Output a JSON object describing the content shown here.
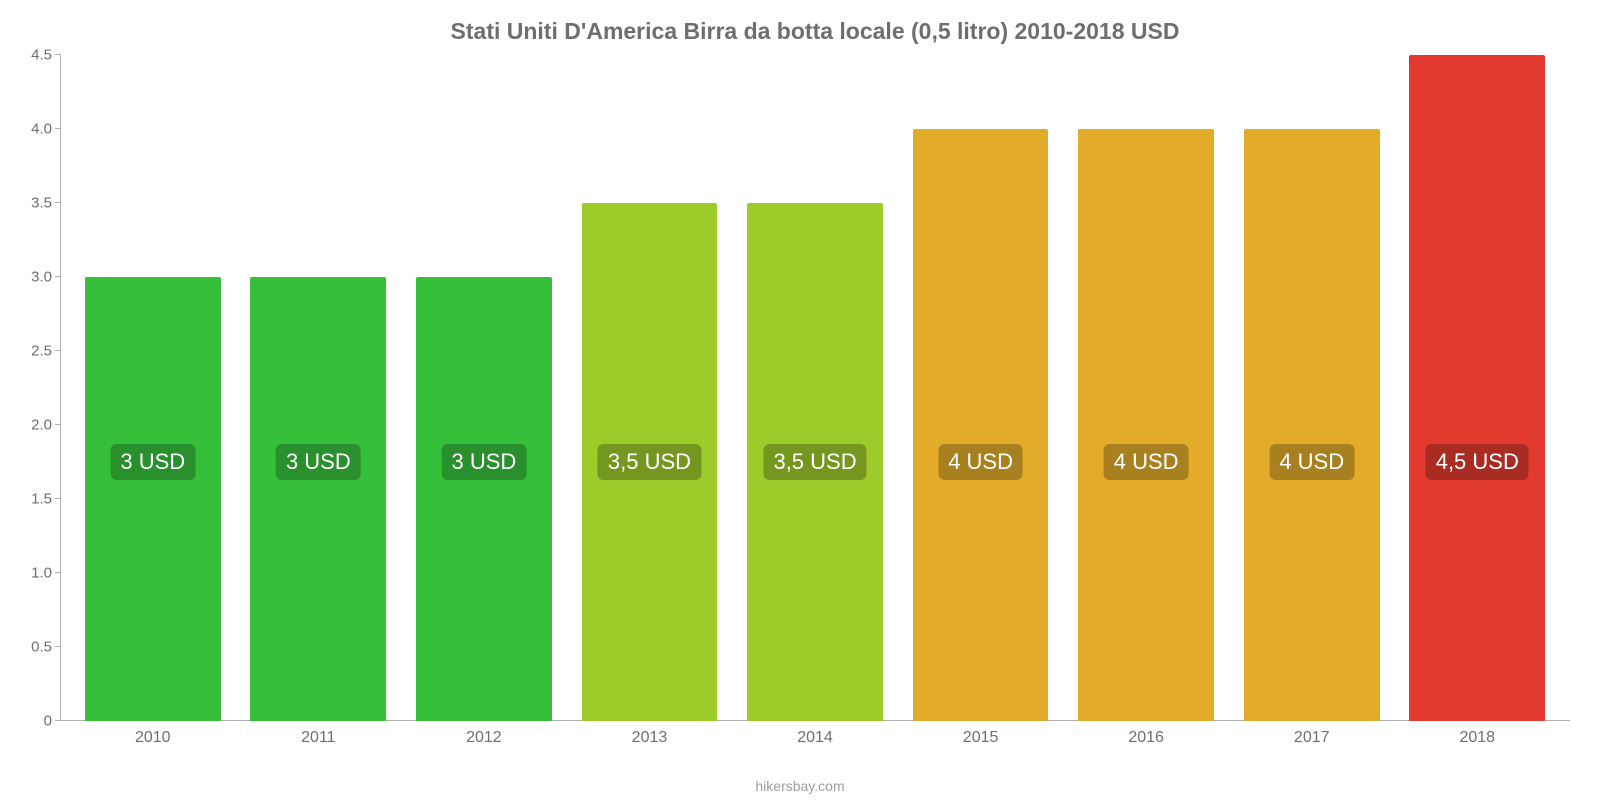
{
  "chart": {
    "type": "bar",
    "title": "Stati Uniti D'America Birra da botta locale (0,5 litro) 2010-2018 USD",
    "title_color": "#6e6e6e",
    "title_fontsize": 23,
    "background_color": "#ffffff",
    "axis_color": "#b0b0b0",
    "tick_label_color": "#6e6e6e",
    "tick_fontsize": 15,
    "x_label_fontsize": 16,
    "ylim": [
      0,
      4.5
    ],
    "ytick_step": 0.5,
    "yticks": [
      "0",
      "0.5",
      "1.0",
      "1.5",
      "2.0",
      "2.5",
      "3.0",
      "3.5",
      "4.0",
      "4.5"
    ],
    "categories": [
      "2010",
      "2011",
      "2012",
      "2013",
      "2014",
      "2015",
      "2016",
      "2017",
      "2018"
    ],
    "values": [
      3.0,
      3.0,
      3.0,
      3.5,
      3.5,
      4.0,
      4.0,
      4.0,
      4.5
    ],
    "value_labels": [
      "3 USD",
      "3 USD",
      "3 USD",
      "3,5 USD",
      "3,5 USD",
      "4 USD",
      "4 USD",
      "4 USD",
      "4,5 USD"
    ],
    "bar_colors": [
      "#35bf3a",
      "#35bf3a",
      "#35bf3a",
      "#9ccb2a",
      "#9ccb2a",
      "#e2ab2a",
      "#e2ab2a",
      "#e2ab2a",
      "#e23a2e"
    ],
    "label_bg_colors": [
      "#2a8f2d",
      "#2a8f2d",
      "#2a8f2d",
      "#76971f",
      "#76971f",
      "#a9801f",
      "#a9801f",
      "#a9801f",
      "#a92c22"
    ],
    "label_text_color": "#ffffff",
    "label_fontsize": 22,
    "bar_width": 0.82,
    "attribution": "hikersbay.com",
    "attribution_color": "#9d9d9d"
  }
}
